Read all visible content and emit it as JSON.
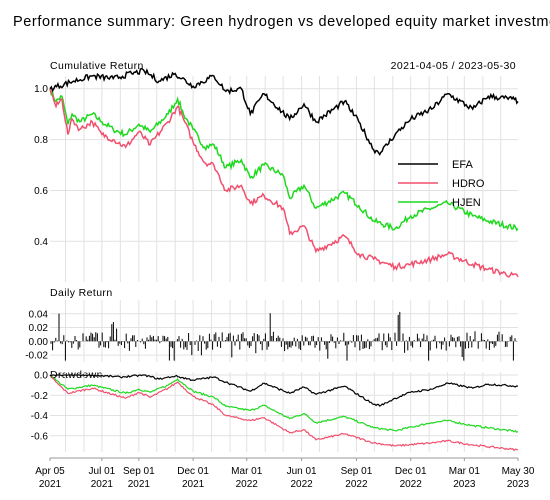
{
  "chart_data": {
    "type": "line",
    "title": "Performance summary: Green hydrogen vs developed equity market investments",
    "date_range_label": "2021-04-05 / 2023-05-30",
    "x_start": "2021-04-05",
    "x_end": "2023-05-30",
    "x_ticks": [
      {
        "line1": "Apr 05",
        "line2": "2021",
        "date": "2021-04-05"
      },
      {
        "line1": "Jul 01",
        "line2": "2021",
        "date": "2021-07-01"
      },
      {
        "line1": "Sep 01",
        "line2": "2021",
        "date": "2021-09-01"
      },
      {
        "line1": "Dec 01",
        "line2": "2021",
        "date": "2021-12-01"
      },
      {
        "line1": "Mar 01",
        "line2": "2022",
        "date": "2022-03-01"
      },
      {
        "line1": "Jun 01",
        "line2": "2022",
        "date": "2022-06-01"
      },
      {
        "line1": "Sep 01",
        "line2": "2022",
        "date": "2022-09-01"
      },
      {
        "line1": "Dec 01",
        "line2": "2022",
        "date": "2022-12-01"
      },
      {
        "line1": "Mar 01",
        "line2": "2023",
        "date": "2023-03-01"
      },
      {
        "line1": "May 30",
        "line2": "2023",
        "date": "2023-05-30"
      }
    ],
    "legend": {
      "placement": "center-right",
      "entries": [
        "EFA",
        "HDRO",
        "HJEN"
      ]
    },
    "colors": {
      "EFA": "#000000",
      "HDRO": "#f0506e",
      "HJEN": "#1ed91e"
    },
    "panels": {
      "cumulative": {
        "label": "Cumulative Return",
        "ylim": [
          0.24,
          1.05
        ],
        "yticks": [
          {
            "label": "1.0",
            "value": 1.0
          },
          {
            "label": "0.8",
            "value": 0.8
          },
          {
            "label": "0.6",
            "value": 0.6
          },
          {
            "label": "0.4",
            "value": 0.4
          }
        ]
      },
      "daily": {
        "label": "Daily Return",
        "ylim": [
          -0.03,
          0.06
        ],
        "yticks": [
          {
            "label": "0.04",
            "value": 0.04
          },
          {
            "label": "0.02",
            "value": 0.02
          },
          {
            "label": "0.00",
            "value": 0.0
          },
          {
            "label": "-0.02",
            "value": -0.02
          }
        ]
      },
      "drawdown": {
        "label": "Drawdown",
        "ylim": [
          -0.76,
          0.03
        ],
        "yticks": [
          {
            "label": "0.0",
            "value": 0.0
          },
          {
            "label": "-0.2",
            "value": -0.2
          },
          {
            "label": "-0.4",
            "value": -0.4
          },
          {
            "label": "-0.6",
            "value": -0.6
          }
        ]
      }
    },
    "series": [
      {
        "name": "EFA",
        "cumulative": [
          [
            "2021-04-05",
            1.0
          ],
          [
            "2021-05-15",
            1.03
          ],
          [
            "2021-06-15",
            1.05
          ],
          [
            "2021-07-20",
            1.04
          ],
          [
            "2021-08-20",
            1.06
          ],
          [
            "2021-09-10",
            1.07
          ],
          [
            "2021-10-05",
            1.03
          ],
          [
            "2021-11-01",
            1.06
          ],
          [
            "2021-12-01",
            1.01
          ],
          [
            "2022-01-05",
            1.05
          ],
          [
            "2022-01-25",
            0.99
          ],
          [
            "2022-02-20",
            1.0
          ],
          [
            "2022-03-07",
            0.9
          ],
          [
            "2022-03-30",
            0.98
          ],
          [
            "2022-05-12",
            0.88
          ],
          [
            "2022-06-05",
            0.94
          ],
          [
            "2022-06-25",
            0.87
          ],
          [
            "2022-08-12",
            0.95
          ],
          [
            "2022-09-05",
            0.87
          ],
          [
            "2022-09-30",
            0.76
          ],
          [
            "2022-10-12",
            0.75
          ],
          [
            "2022-11-05",
            0.82
          ],
          [
            "2022-12-01",
            0.88
          ],
          [
            "2023-01-05",
            0.92
          ],
          [
            "2023-02-01",
            0.98
          ],
          [
            "2023-03-15",
            0.92
          ],
          [
            "2023-04-10",
            0.97
          ],
          [
            "2023-05-20",
            0.96
          ],
          [
            "2023-05-30",
            0.95
          ]
        ],
        "drawdown": [
          [
            "2021-04-05",
            0.0
          ],
          [
            "2021-06-15",
            0.0
          ],
          [
            "2021-08-01",
            -0.02
          ],
          [
            "2021-09-10",
            0.0
          ],
          [
            "2021-10-05",
            -0.04
          ],
          [
            "2021-11-01",
            -0.01
          ],
          [
            "2021-12-01",
            -0.05
          ],
          [
            "2022-01-05",
            -0.02
          ],
          [
            "2022-01-25",
            -0.07
          ],
          [
            "2022-03-07",
            -0.16
          ],
          [
            "2022-03-30",
            -0.08
          ],
          [
            "2022-05-12",
            -0.18
          ],
          [
            "2022-06-05",
            -0.12
          ],
          [
            "2022-06-25",
            -0.19
          ],
          [
            "2022-08-12",
            -0.11
          ],
          [
            "2022-09-30",
            -0.29
          ],
          [
            "2022-10-12",
            -0.3
          ],
          [
            "2022-11-05",
            -0.23
          ],
          [
            "2022-12-01",
            -0.17
          ],
          [
            "2023-01-05",
            -0.14
          ],
          [
            "2023-02-01",
            -0.08
          ],
          [
            "2023-03-15",
            -0.13
          ],
          [
            "2023-04-10",
            -0.09
          ],
          [
            "2023-05-30",
            -0.11
          ]
        ]
      },
      {
        "name": "HDRO",
        "cumulative": [
          [
            "2021-04-05",
            1.0
          ],
          [
            "2021-04-15",
            0.93
          ],
          [
            "2021-04-25",
            0.96
          ],
          [
            "2021-05-05",
            0.82
          ],
          [
            "2021-05-12",
            0.88
          ],
          [
            "2021-05-25",
            0.84
          ],
          [
            "2021-06-15",
            0.87
          ],
          [
            "2021-07-01",
            0.82
          ],
          [
            "2021-07-20",
            0.8
          ],
          [
            "2021-08-10",
            0.77
          ],
          [
            "2021-09-01",
            0.83
          ],
          [
            "2021-09-20",
            0.78
          ],
          [
            "2021-10-20",
            0.87
          ],
          [
            "2021-11-05",
            0.93
          ],
          [
            "2021-11-15",
            0.88
          ],
          [
            "2021-12-01",
            0.79
          ],
          [
            "2021-12-20",
            0.71
          ],
          [
            "2022-01-05",
            0.7
          ],
          [
            "2022-01-25",
            0.6
          ],
          [
            "2022-02-20",
            0.62
          ],
          [
            "2022-03-07",
            0.55
          ],
          [
            "2022-03-30",
            0.58
          ],
          [
            "2022-05-01",
            0.53
          ],
          [
            "2022-05-12",
            0.43
          ],
          [
            "2022-06-05",
            0.46
          ],
          [
            "2022-06-25",
            0.36
          ],
          [
            "2022-08-12",
            0.42
          ],
          [
            "2022-09-05",
            0.35
          ],
          [
            "2022-09-30",
            0.33
          ],
          [
            "2022-11-05",
            0.3
          ],
          [
            "2022-12-01",
            0.31
          ],
          [
            "2023-01-05",
            0.33
          ],
          [
            "2023-02-01",
            0.35
          ],
          [
            "2023-03-15",
            0.31
          ],
          [
            "2023-04-10",
            0.29
          ],
          [
            "2023-05-30",
            0.26
          ]
        ],
        "drawdown": [
          [
            "2021-04-05",
            0.0
          ],
          [
            "2021-04-15",
            -0.07
          ],
          [
            "2021-05-05",
            -0.18
          ],
          [
            "2021-06-15",
            -0.13
          ],
          [
            "2021-08-10",
            -0.23
          ],
          [
            "2021-09-01",
            -0.17
          ],
          [
            "2021-09-20",
            -0.22
          ],
          [
            "2021-10-20",
            -0.13
          ],
          [
            "2021-11-05",
            -0.07
          ],
          [
            "2021-12-01",
            -0.21
          ],
          [
            "2022-01-05",
            -0.3
          ],
          [
            "2022-01-25",
            -0.4
          ],
          [
            "2022-03-07",
            -0.45
          ],
          [
            "2022-03-30",
            -0.42
          ],
          [
            "2022-05-12",
            -0.57
          ],
          [
            "2022-06-05",
            -0.54
          ],
          [
            "2022-06-25",
            -0.64
          ],
          [
            "2022-08-12",
            -0.58
          ],
          [
            "2022-09-30",
            -0.67
          ],
          [
            "2022-11-05",
            -0.7
          ],
          [
            "2023-01-05",
            -0.67
          ],
          [
            "2023-02-01",
            -0.65
          ],
          [
            "2023-03-15",
            -0.69
          ],
          [
            "2023-05-30",
            -0.74
          ]
        ]
      },
      {
        "name": "HJEN",
        "cumulative": [
          [
            "2021-04-05",
            1.0
          ],
          [
            "2021-04-15",
            0.95
          ],
          [
            "2021-04-25",
            0.97
          ],
          [
            "2021-05-05",
            0.86
          ],
          [
            "2021-05-12",
            0.9
          ],
          [
            "2021-05-25",
            0.87
          ],
          [
            "2021-06-15",
            0.9
          ],
          [
            "2021-07-01",
            0.87
          ],
          [
            "2021-07-20",
            0.84
          ],
          [
            "2021-08-10",
            0.82
          ],
          [
            "2021-09-01",
            0.86
          ],
          [
            "2021-09-20",
            0.83
          ],
          [
            "2021-10-20",
            0.9
          ],
          [
            "2021-11-05",
            0.96
          ],
          [
            "2021-11-15",
            0.9
          ],
          [
            "2021-12-01",
            0.84
          ],
          [
            "2021-12-20",
            0.77
          ],
          [
            "2022-01-05",
            0.78
          ],
          [
            "2022-01-25",
            0.69
          ],
          [
            "2022-02-20",
            0.72
          ],
          [
            "2022-03-07",
            0.65
          ],
          [
            "2022-03-30",
            0.7
          ],
          [
            "2022-05-01",
            0.66
          ],
          [
            "2022-05-12",
            0.57
          ],
          [
            "2022-06-05",
            0.62
          ],
          [
            "2022-06-25",
            0.53
          ],
          [
            "2022-08-12",
            0.59
          ],
          [
            "2022-09-05",
            0.54
          ],
          [
            "2022-09-30",
            0.48
          ],
          [
            "2022-11-05",
            0.45
          ],
          [
            "2022-12-01",
            0.5
          ],
          [
            "2023-01-05",
            0.53
          ],
          [
            "2023-02-01",
            0.55
          ],
          [
            "2023-03-15",
            0.5
          ],
          [
            "2023-04-10",
            0.48
          ],
          [
            "2023-05-30",
            0.45
          ]
        ],
        "drawdown": [
          [
            "2021-04-05",
            0.0
          ],
          [
            "2021-04-15",
            -0.05
          ],
          [
            "2021-05-05",
            -0.14
          ],
          [
            "2021-06-15",
            -0.1
          ],
          [
            "2021-08-10",
            -0.18
          ],
          [
            "2021-09-01",
            -0.14
          ],
          [
            "2021-09-20",
            -0.17
          ],
          [
            "2021-10-20",
            -0.1
          ],
          [
            "2021-11-05",
            -0.04
          ],
          [
            "2021-12-01",
            -0.16
          ],
          [
            "2022-01-05",
            -0.22
          ],
          [
            "2022-01-25",
            -0.31
          ],
          [
            "2022-03-07",
            -0.35
          ],
          [
            "2022-03-30",
            -0.3
          ],
          [
            "2022-05-12",
            -0.43
          ],
          [
            "2022-06-05",
            -0.38
          ],
          [
            "2022-06-25",
            -0.47
          ],
          [
            "2022-08-12",
            -0.41
          ],
          [
            "2022-09-30",
            -0.52
          ],
          [
            "2022-11-05",
            -0.55
          ],
          [
            "2023-01-05",
            -0.47
          ],
          [
            "2023-02-01",
            -0.45
          ],
          [
            "2023-03-15",
            -0.5
          ],
          [
            "2023-05-30",
            -0.56
          ]
        ]
      }
    ],
    "daily_returns_note_free": true
  }
}
